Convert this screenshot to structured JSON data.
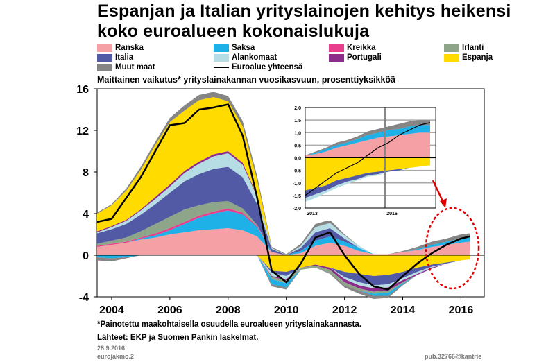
{
  "title_line1": "Espanjan ja Italian yrityslainojen kehitys heikensi",
  "title_line2": "koko euroalueen kokonaislukuja",
  "subtitle": "Maittainen vaikutus* yrityslainakannan vuosikasvuun, prosenttiyksikköä",
  "footnote": "*Painotettu maakohtaisella osuudella euroalueen yrityslainakannasta.",
  "sources": "Lähteet: EKP ja Suomen Pankin laskelmat.",
  "date": "28.9.2016",
  "file": "eurojakmo.2",
  "code": "pub.32766@kantrie",
  "legend": [
    {
      "name": "Ranska",
      "color": "#f4a0a4"
    },
    {
      "name": "Saksa",
      "color": "#1eb1e8"
    },
    {
      "name": "Kreikka",
      "color": "#e83e8c"
    },
    {
      "name": "Irlanti",
      "color": "#8fa58a"
    },
    {
      "name": "Italia",
      "color": "#525aa6"
    },
    {
      "name": "Alankomaat",
      "color": "#b6dde3"
    },
    {
      "name": "Portugali",
      "color": "#8e2c8c"
    },
    {
      "name": "Espanja",
      "color": "#ffdb00"
    },
    {
      "name": "Muut maat",
      "color": "#858585"
    },
    {
      "name": "Euroalue yhteensä",
      "color": "#000000"
    }
  ],
  "chart_data": {
    "type": "area",
    "x": [
      2003.5,
      2004,
      2004.5,
      2005,
      2005.5,
      2006,
      2006.5,
      2007,
      2007.5,
      2008,
      2008.5,
      2009,
      2009.5,
      2010,
      2010.5,
      2011,
      2011.5,
      2012,
      2012.5,
      2013,
      2013.5,
      2014,
      2014.5,
      2015,
      2015.5,
      2016,
      2016.3
    ],
    "xlim": [
      2003.5,
      2016.8
    ],
    "ylim": [
      -4,
      16
    ],
    "xticks": [
      "2004",
      "2006",
      "2008",
      "2010",
      "2012",
      "2014",
      "2016"
    ],
    "yticks": [
      "-4",
      "0",
      "4",
      "8",
      "12",
      "16"
    ],
    "positive_series": [
      {
        "name": "Ranska",
        "color": "#f4a0a4",
        "values": [
          0.8,
          1.0,
          1.2,
          1.5,
          1.7,
          2.0,
          2.2,
          2.4,
          2.5,
          2.6,
          2.4,
          1.8,
          0.3,
          0.0,
          0.2,
          0.9,
          1.2,
          0.9,
          0.4,
          0.1,
          0.1,
          0.3,
          0.5,
          0.8,
          1.0,
          1.2,
          1.3
        ]
      },
      {
        "name": "Saksa",
        "color": "#1eb1e8",
        "values": [
          0.0,
          0.0,
          0.0,
          0.1,
          0.2,
          0.4,
          0.8,
          1.2,
          1.5,
          1.7,
          1.5,
          0.9,
          0.0,
          0.0,
          0.2,
          0.5,
          0.6,
          0.4,
          0.3,
          0.0,
          0.0,
          0.0,
          0.1,
          0.2,
          0.3,
          0.4,
          0.4
        ]
      },
      {
        "name": "Kreikka",
        "color": "#e83e8c",
        "values": [
          0.1,
          0.1,
          0.1,
          0.1,
          0.2,
          0.2,
          0.2,
          0.2,
          0.2,
          0.2,
          0.2,
          0.1,
          0.0,
          0.0,
          0.0,
          0.0,
          0.0,
          0.0,
          0.0,
          0.0,
          0.0,
          0.0,
          0.0,
          0.0,
          0.0,
          0.0,
          0.0
        ]
      },
      {
        "name": "Irlanti",
        "color": "#8fa58a",
        "values": [
          0.2,
          0.3,
          0.4,
          0.6,
          0.9,
          1.1,
          1.2,
          1.0,
          0.9,
          0.7,
          0.4,
          0.1,
          0.0,
          0.0,
          0.0,
          0.0,
          0.0,
          0.0,
          0.0,
          0.0,
          0.0,
          0.0,
          0.0,
          0.0,
          0.0,
          0.0,
          0.0
        ]
      },
      {
        "name": "Italia",
        "color": "#525aa6",
        "values": [
          1.0,
          1.1,
          1.3,
          1.6,
          1.9,
          2.3,
          2.7,
          3.0,
          3.2,
          3.3,
          3.0,
          2.0,
          0.3,
          0.0,
          0.3,
          0.8,
          0.8,
          0.3,
          0.0,
          0.0,
          0.0,
          0.0,
          0.0,
          0.0,
          0.0,
          0.0,
          0.0
        ]
      },
      {
        "name": "Alankomaat",
        "color": "#b6dde3",
        "values": [
          0.1,
          0.2,
          0.3,
          0.4,
          0.5,
          0.6,
          0.8,
          1.0,
          1.2,
          1.3,
          1.2,
          0.7,
          0.1,
          0.0,
          0.2,
          0.5,
          0.5,
          0.3,
          0.2,
          0.0,
          0.0,
          0.0,
          0.0,
          0.0,
          0.0,
          0.0,
          0.0
        ]
      },
      {
        "name": "Portugali",
        "color": "#8e2c8c",
        "values": [
          0.1,
          0.1,
          0.1,
          0.1,
          0.2,
          0.2,
          0.2,
          0.2,
          0.2,
          0.2,
          0.2,
          0.1,
          0.0,
          0.0,
          0.0,
          0.0,
          0.0,
          0.0,
          0.0,
          0.0,
          0.0,
          0.0,
          0.0,
          0.0,
          0.0,
          0.0,
          0.0
        ]
      },
      {
        "name": "Espanja",
        "color": "#ffdb00",
        "values": [
          1.7,
          2.0,
          2.8,
          3.8,
          5.0,
          6.0,
          5.8,
          5.9,
          5.5,
          4.8,
          3.5,
          1.5,
          0.0,
          0.0,
          0.0,
          0.0,
          0.0,
          0.0,
          0.0,
          0.0,
          0.0,
          0.0,
          0.0,
          0.0,
          0.0,
          0.0,
          0.0
        ]
      },
      {
        "name": "Muut maat",
        "color": "#858585",
        "values": [
          0.1,
          0.1,
          0.2,
          0.3,
          0.3,
          0.4,
          0.5,
          0.5,
          0.5,
          0.5,
          0.5,
          0.4,
          0.1,
          0.1,
          0.2,
          0.3,
          0.3,
          0.1,
          0.0,
          0.0,
          0.0,
          0.1,
          0.2,
          0.3,
          0.3,
          0.4,
          0.4
        ]
      }
    ],
    "negative_series": [
      {
        "name": "Espanja",
        "color": "#ffdb00",
        "values": [
          0.0,
          0.0,
          0.0,
          0.0,
          0.0,
          0.0,
          0.0,
          0.0,
          0.0,
          0.0,
          0.0,
          0.0,
          -1.5,
          -1.6,
          -1.2,
          -0.9,
          -1.2,
          -1.6,
          -1.8,
          -2.0,
          -1.9,
          -1.6,
          -1.2,
          -0.9,
          -0.7,
          -0.5,
          -0.4
        ]
      },
      {
        "name": "Italia",
        "color": "#525aa6",
        "values": [
          0.0,
          0.0,
          0.0,
          0.0,
          0.0,
          0.0,
          0.0,
          0.0,
          0.0,
          0.0,
          0.0,
          0.0,
          -0.2,
          -0.4,
          0.0,
          0.0,
          0.0,
          -0.5,
          -0.8,
          -0.9,
          -0.9,
          -0.6,
          -0.4,
          -0.2,
          -0.1,
          0.0,
          0.0
        ]
      },
      {
        "name": "Alankomaat",
        "color": "#b6dde3",
        "values": [
          0.0,
          0.0,
          0.0,
          0.0,
          0.0,
          0.0,
          0.0,
          0.0,
          0.0,
          0.0,
          0.0,
          0.0,
          -0.3,
          -0.3,
          0.0,
          0.0,
          0.0,
          -0.2,
          -0.3,
          -0.3,
          -0.3,
          -0.2,
          -0.2,
          -0.1,
          0.0,
          0.0,
          0.0
        ]
      },
      {
        "name": "Portugali",
        "color": "#8e2c8c",
        "values": [
          0.0,
          0.0,
          0.0,
          0.0,
          0.0,
          0.0,
          0.0,
          0.0,
          0.0,
          0.0,
          0.0,
          0.0,
          -0.1,
          -0.1,
          0.0,
          -0.1,
          -0.2,
          -0.3,
          -0.3,
          -0.3,
          -0.3,
          -0.2,
          -0.1,
          -0.1,
          0.0,
          0.0,
          0.0
        ]
      },
      {
        "name": "Irlanti",
        "color": "#8fa58a",
        "values": [
          0.0,
          0.0,
          0.0,
          0.0,
          0.0,
          0.0,
          0.0,
          0.0,
          0.0,
          0.0,
          0.0,
          0.0,
          -0.2,
          -0.3,
          -0.2,
          -0.2,
          -0.3,
          -0.3,
          -0.2,
          -0.2,
          -0.2,
          -0.1,
          0.0,
          0.0,
          0.0,
          0.0,
          0.0
        ]
      },
      {
        "name": "Saksa",
        "color": "#1eb1e8",
        "values": [
          -0.2,
          -0.3,
          -0.2,
          0.0,
          0.0,
          0.0,
          0.0,
          0.0,
          0.0,
          0.0,
          0.0,
          0.0,
          -0.5,
          -0.4,
          0.0,
          0.0,
          0.0,
          0.0,
          0.0,
          -0.2,
          -0.3,
          -0.1,
          0.0,
          0.0,
          0.0,
          0.0,
          0.0
        ]
      },
      {
        "name": "Muut maat",
        "color": "#858585",
        "values": [
          -0.3,
          -0.3,
          -0.1,
          0.0,
          0.0,
          0.0,
          0.0,
          0.0,
          0.0,
          0.0,
          0.0,
          0.0,
          -0.2,
          -0.2,
          0.0,
          0.0,
          -0.1,
          -0.2,
          -0.3,
          -0.3,
          -0.2,
          -0.1,
          0.0,
          0.0,
          0.0,
          0.0,
          0.0
        ]
      }
    ],
    "total": {
      "name": "Euroalue yhteensä",
      "color": "#000000",
      "values": [
        3.2,
        3.5,
        5.5,
        7.5,
        10.0,
        12.5,
        12.7,
        14.0,
        14.2,
        14.5,
        11.5,
        5.5,
        -1.5,
        -2.6,
        -0.8,
        1.7,
        2.2,
        0.0,
        -1.8,
        -3.0,
        -3.3,
        -2.0,
        -0.8,
        0.2,
        1.0,
        1.6,
        1.8
      ]
    },
    "inset": {
      "x": [
        2013.5,
        2013.75,
        2014,
        2014.25,
        2014.5,
        2014.75,
        2015,
        2015.25,
        2015.5,
        2015.75,
        2016,
        2016.25,
        2016.5
      ],
      "ylim": [
        -2.0,
        2.0
      ],
      "yticks": [
        "2,0",
        "1,5",
        "1,0",
        "0,5",
        "0,0",
        "-0,5",
        "-1,0",
        "-1,5",
        "-2,0"
      ],
      "xticks": [
        "2013",
        "2016"
      ],
      "positive": [
        {
          "name": "Ranska",
          "color": "#f4a0a4",
          "values": [
            0.1,
            0.15,
            0.25,
            0.4,
            0.5,
            0.6,
            0.7,
            0.8,
            0.85,
            0.9,
            0.95,
            1.0,
            1.0
          ]
        },
        {
          "name": "Saksa",
          "color": "#1eb1e8",
          "values": [
            0.0,
            0.05,
            0.1,
            0.1,
            0.1,
            0.15,
            0.2,
            0.2,
            0.25,
            0.25,
            0.3,
            0.3,
            0.3
          ]
        },
        {
          "name": "Muut maat",
          "color": "#858585",
          "values": [
            0.0,
            0.05,
            0.05,
            0.1,
            0.1,
            0.1,
            0.15,
            0.15,
            0.15,
            0.2,
            0.2,
            0.2,
            0.2
          ]
        }
      ],
      "negative": [
        {
          "name": "Espanja",
          "color": "#ffdb00",
          "values": [
            -1.3,
            -1.2,
            -1.1,
            -0.9,
            -0.8,
            -0.7,
            -0.6,
            -0.55,
            -0.5,
            -0.45,
            -0.4,
            -0.35,
            -0.3
          ]
        },
        {
          "name": "Italia",
          "color": "#525aa6",
          "values": [
            -0.3,
            -0.25,
            -0.2,
            -0.2,
            -0.15,
            -0.15,
            -0.1,
            -0.1,
            -0.05,
            -0.05,
            0.0,
            0.0,
            0.0
          ]
        },
        {
          "name": "Alankomaat",
          "color": "#b6dde3",
          "values": [
            -0.15,
            -0.15,
            -0.1,
            -0.1,
            -0.1,
            -0.05,
            -0.05,
            -0.05,
            0.0,
            0.0,
            0.0,
            0.0,
            0.0
          ]
        }
      ],
      "total": {
        "name": "Euroalue yhteensä",
        "color": "#000000",
        "values": [
          -1.5,
          -1.2,
          -0.9,
          -0.6,
          -0.4,
          -0.2,
          0.1,
          0.4,
          0.6,
          0.9,
          1.1,
          1.3,
          1.4
        ]
      }
    },
    "annotation": {
      "shape": "red dashed ellipse with arrow",
      "color": "#e00000"
    }
  }
}
